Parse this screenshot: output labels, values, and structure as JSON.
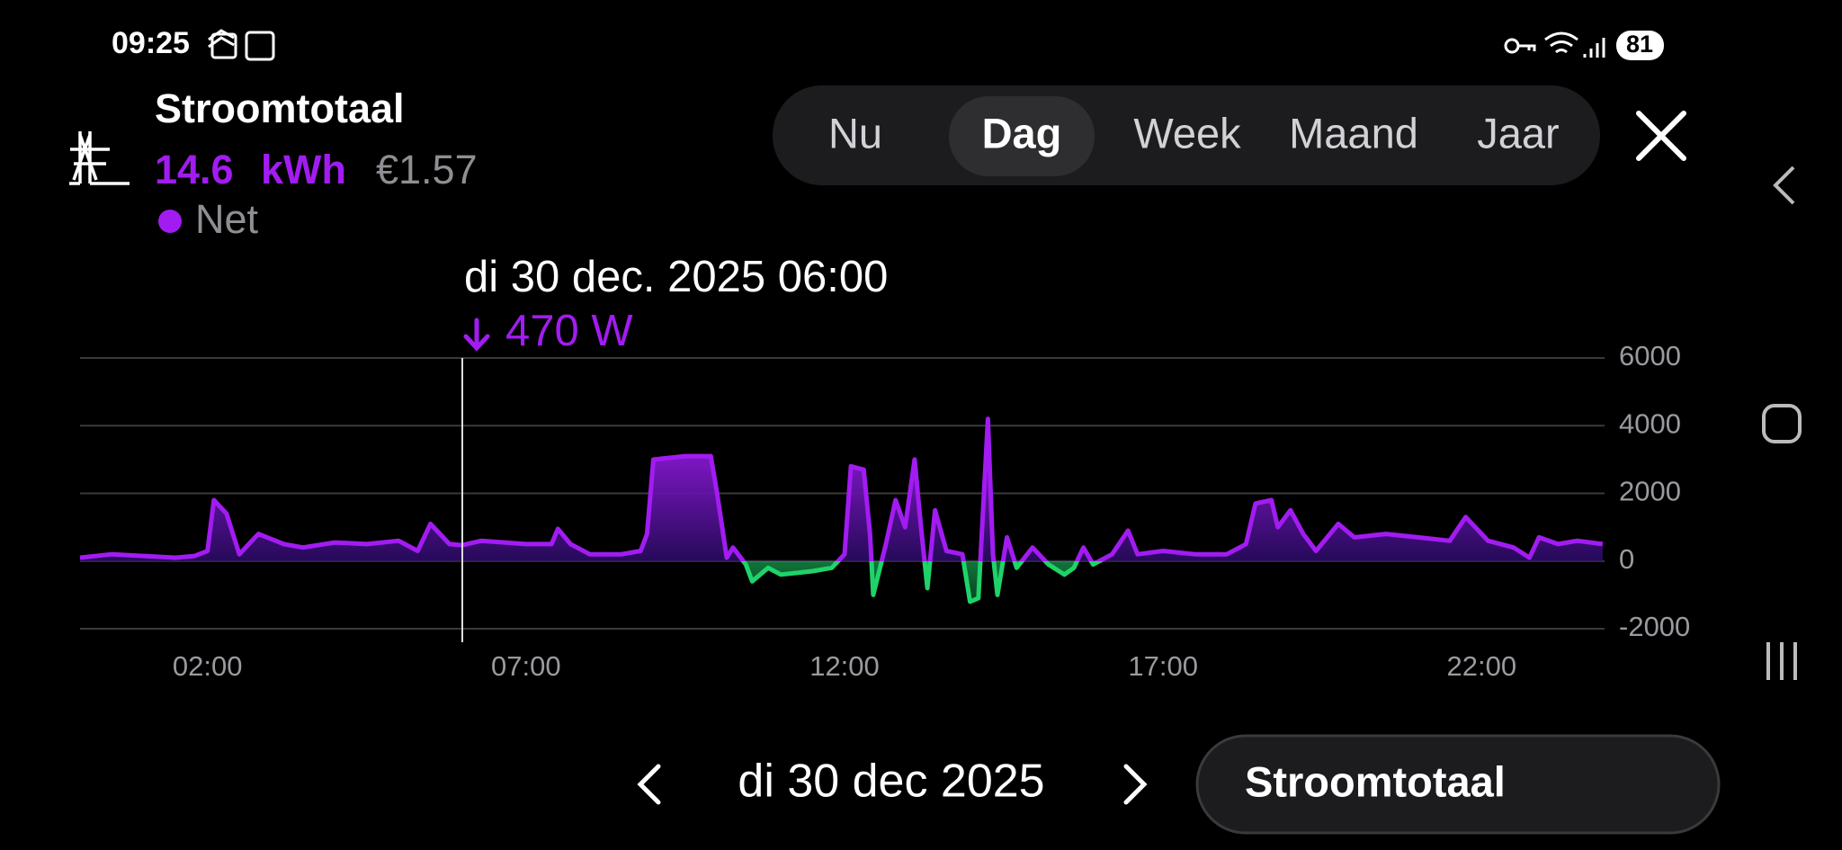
{
  "status_bar": {
    "time": "09:25",
    "battery": 81
  },
  "header": {
    "title": "Stroomtotaal",
    "energy_value": 14.6,
    "energy_unit": "kWh",
    "cost": "€1.57"
  },
  "tabs": [
    "Nu",
    "Dag",
    "Week",
    "Maand",
    "Jaar"
  ],
  "date_nav": {
    "date": "di 30 dec 2025"
  },
  "dataset_button": {
    "label": "Stroomtotaal"
  },
  "chart_data": {
    "type": "area",
    "x": [
      0,
      0.5,
      1,
      1.5,
      1.8,
      2,
      2.1,
      2.3,
      2.5,
      2.8,
      3.2,
      3.5,
      4,
      4.5,
      5,
      5.3,
      5.5,
      5.8,
      6,
      6.3,
      7,
      7.4,
      7.5,
      7.7,
      8,
      8.5,
      8.8,
      8.9,
      9,
      9.5,
      9.9,
      10,
      10.15,
      10.25,
      10.45,
      10.55,
      10.8,
      11,
      11.5,
      11.8,
      12,
      12.1,
      12.3,
      12.4,
      12.45,
      12.65,
      12.8,
      12.95,
      13.1,
      13.2,
      13.3,
      13.42,
      13.6,
      13.85,
      13.97,
      14.1,
      14.25,
      14.33,
      14.4,
      14.55,
      14.7,
      14.95,
      15.2,
      15.45,
      15.6,
      15.75,
      15.9,
      16.2,
      16.45,
      16.6,
      17,
      17.5,
      18,
      18.3,
      18.45,
      18.7,
      18.8,
      19,
      19.2,
      19.4,
      19.75,
      20,
      20.5,
      21,
      21.5,
      21.75,
      22.1,
      22.5,
      22.75,
      22.9,
      23.2,
      23.5,
      23.9
    ],
    "series": [
      {
        "name": "Net",
        "color": "#a21cf2",
        "negative_color": "#1fd36a",
        "values": [
          100,
          200,
          150,
          100,
          150,
          300,
          1800,
          1400,
          200,
          800,
          500,
          400,
          550,
          500,
          600,
          300,
          1100,
          500,
          470,
          600,
          500,
          500,
          950,
          500,
          200,
          200,
          300,
          800,
          3000,
          3100,
          3100,
          2000,
          100,
          400,
          -100,
          -600,
          -200,
          -400,
          -300,
          -200,
          200,
          2800,
          2700,
          800,
          -1000,
          500,
          1800,
          1000,
          3000,
          1000,
          -800,
          1500,
          300,
          200,
          -1200,
          -1100,
          4200,
          200,
          -1000,
          700,
          -200,
          400,
          -100,
          -400,
          -200,
          400,
          -100,
          200,
          900,
          200,
          300,
          200,
          200,
          500,
          1700,
          1800,
          1000,
          1500,
          800,
          300,
          1100,
          700,
          800,
          700,
          600,
          1300,
          600,
          400,
          100,
          700,
          500,
          600,
          500
        ]
      }
    ],
    "xlim": [
      0,
      24
    ],
    "xticks": [
      {
        "value": 2,
        "label": "02:00"
      },
      {
        "value": 7,
        "label": "07:00"
      },
      {
        "value": 12,
        "label": "12:00"
      },
      {
        "value": 17,
        "label": "17:00"
      },
      {
        "value": 22,
        "label": "22:00"
      }
    ],
    "ylim": [
      -2000,
      6000
    ],
    "yticks": [
      -2000,
      0,
      2000,
      4000,
      6000
    ],
    "grid": true,
    "cursor": {
      "x": 6,
      "label": "di 30 dec. 2025 06:00",
      "value_label": "470 W"
    }
  }
}
